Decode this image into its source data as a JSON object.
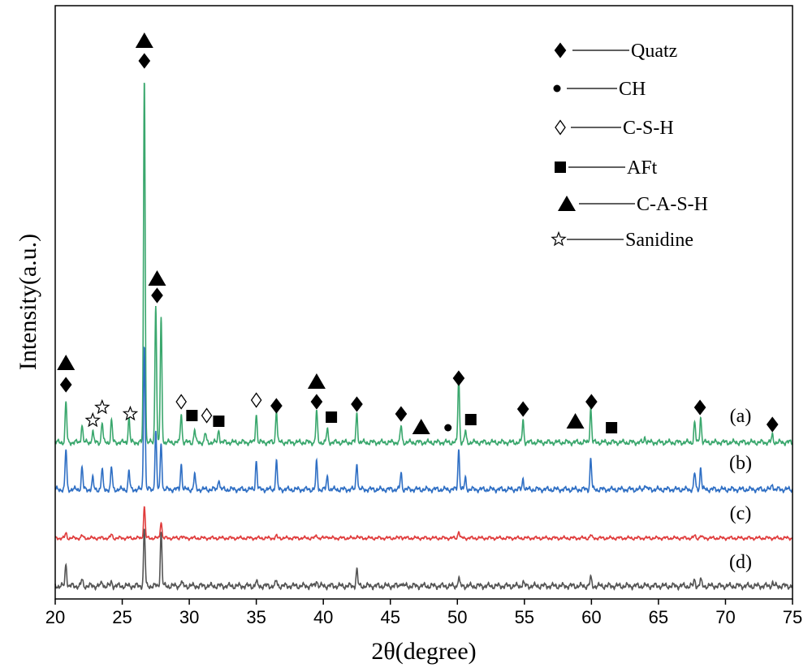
{
  "chart_data": {
    "type": "line",
    "title": "",
    "xlabel": "2θ(degree)",
    "ylabel": "Intensity(a.u.)",
    "xlim": [
      20,
      75
    ],
    "xticks": [
      20,
      25,
      30,
      35,
      40,
      45,
      50,
      55,
      60,
      65,
      70,
      75
    ],
    "grid": false,
    "legend_position": "top-right",
    "legend": [
      {
        "symbol": "diamond-filled",
        "label": "Quatz"
      },
      {
        "symbol": "circle-filled",
        "label": "CH"
      },
      {
        "symbol": "diamond-open",
        "label": "C-S-H"
      },
      {
        "symbol": "square-filled",
        "label": "AFt"
      },
      {
        "symbol": "triangle-filled",
        "label": "C-A-S-H"
      },
      {
        "symbol": "star-open",
        "label": "Sanidine"
      }
    ],
    "series": [
      {
        "name": "(a)",
        "color": "#3aa76d",
        "peaks": [
          {
            "x": 20.8,
            "h": 1.1
          },
          {
            "x": 22.0,
            "h": 0.5
          },
          {
            "x": 22.8,
            "h": 0.3
          },
          {
            "x": 23.5,
            "h": 0.55
          },
          {
            "x": 24.2,
            "h": 0.6
          },
          {
            "x": 25.5,
            "h": 0.7
          },
          {
            "x": 26.65,
            "h": 10.0
          },
          {
            "x": 27.5,
            "h": 3.8
          },
          {
            "x": 27.9,
            "h": 3.4
          },
          {
            "x": 29.4,
            "h": 0.8
          },
          {
            "x": 30.4,
            "h": 0.35
          },
          {
            "x": 31.2,
            "h": 0.25
          },
          {
            "x": 32.2,
            "h": 0.35
          },
          {
            "x": 35.0,
            "h": 0.8
          },
          {
            "x": 36.5,
            "h": 0.9
          },
          {
            "x": 39.5,
            "h": 0.85
          },
          {
            "x": 40.3,
            "h": 0.35
          },
          {
            "x": 42.5,
            "h": 0.8
          },
          {
            "x": 45.8,
            "h": 0.45
          },
          {
            "x": 50.1,
            "h": 1.8
          },
          {
            "x": 50.6,
            "h": 0.3
          },
          {
            "x": 54.9,
            "h": 0.6
          },
          {
            "x": 59.95,
            "h": 0.95
          },
          {
            "x": 64.0,
            "h": 0.15
          },
          {
            "x": 67.7,
            "h": 0.55
          },
          {
            "x": 68.15,
            "h": 0.7
          },
          {
            "x": 73.5,
            "h": 0.2
          }
        ]
      },
      {
        "name": "(b)",
        "color": "#2f6fc4",
        "peaks": [
          {
            "x": 20.8,
            "h": 1.1
          },
          {
            "x": 22.0,
            "h": 0.6
          },
          {
            "x": 22.8,
            "h": 0.3
          },
          {
            "x": 23.5,
            "h": 0.55
          },
          {
            "x": 24.2,
            "h": 0.6
          },
          {
            "x": 25.5,
            "h": 0.5
          },
          {
            "x": 26.65,
            "h": 4.0
          },
          {
            "x": 27.5,
            "h": 1.6
          },
          {
            "x": 27.9,
            "h": 1.3
          },
          {
            "x": 29.4,
            "h": 0.7
          },
          {
            "x": 30.4,
            "h": 0.4
          },
          {
            "x": 32.2,
            "h": 0.3
          },
          {
            "x": 35.0,
            "h": 0.8
          },
          {
            "x": 36.5,
            "h": 0.8
          },
          {
            "x": 39.5,
            "h": 0.75
          },
          {
            "x": 40.3,
            "h": 0.35
          },
          {
            "x": 42.5,
            "h": 0.75
          },
          {
            "x": 45.8,
            "h": 0.45
          },
          {
            "x": 50.1,
            "h": 1.1
          },
          {
            "x": 50.6,
            "h": 0.3
          },
          {
            "x": 54.9,
            "h": 0.3
          },
          {
            "x": 59.95,
            "h": 0.85
          },
          {
            "x": 64.0,
            "h": 0.15
          },
          {
            "x": 67.7,
            "h": 0.45
          },
          {
            "x": 68.15,
            "h": 0.6
          },
          {
            "x": 73.5,
            "h": 0.15
          }
        ]
      },
      {
        "name": "(c)",
        "color": "#e03c3c",
        "peaks": [
          {
            "x": 20.8,
            "h": 0.2
          },
          {
            "x": 22.0,
            "h": 0.1
          },
          {
            "x": 24.2,
            "h": 0.15
          },
          {
            "x": 26.65,
            "h": 1.3
          },
          {
            "x": 27.9,
            "h": 0.7
          },
          {
            "x": 29.4,
            "h": 0.1
          },
          {
            "x": 36.5,
            "h": 0.08
          },
          {
            "x": 39.5,
            "h": 0.12
          },
          {
            "x": 40.3,
            "h": 0.1
          },
          {
            "x": 42.5,
            "h": 0.1
          },
          {
            "x": 45.8,
            "h": 0.08
          },
          {
            "x": 50.1,
            "h": 0.3
          },
          {
            "x": 59.95,
            "h": 0.12
          },
          {
            "x": 67.7,
            "h": 0.1
          },
          {
            "x": 68.15,
            "h": 0.1
          }
        ]
      },
      {
        "name": "(d)",
        "color": "#555555",
        "peaks": [
          {
            "x": 20.8,
            "h": 0.55
          },
          {
            "x": 22.0,
            "h": 0.15
          },
          {
            "x": 23.5,
            "h": 0.1
          },
          {
            "x": 24.2,
            "h": 0.1
          },
          {
            "x": 26.65,
            "h": 1.4
          },
          {
            "x": 27.9,
            "h": 1.35
          },
          {
            "x": 29.4,
            "h": 0.1
          },
          {
            "x": 35.0,
            "h": 0.1
          },
          {
            "x": 36.5,
            "h": 0.12
          },
          {
            "x": 39.5,
            "h": 0.15
          },
          {
            "x": 42.5,
            "h": 0.4
          },
          {
            "x": 45.8,
            "h": 0.1
          },
          {
            "x": 50.1,
            "h": 0.2
          },
          {
            "x": 54.9,
            "h": 0.1
          },
          {
            "x": 59.95,
            "h": 0.2
          },
          {
            "x": 67.7,
            "h": 0.15
          },
          {
            "x": 68.15,
            "h": 0.15
          },
          {
            "x": 73.5,
            "h": 0.08
          }
        ]
      }
    ],
    "phase_markers": [
      {
        "x": 20.8,
        "symbols": [
          "diamond-filled",
          "triangle-filled"
        ]
      },
      {
        "x": 22.8,
        "symbols": [
          "star-open"
        ]
      },
      {
        "x": 23.5,
        "symbols": [
          "star-open"
        ]
      },
      {
        "x": 25.6,
        "symbols": [
          "star-open"
        ]
      },
      {
        "x": 26.65,
        "symbols": [
          "diamond-filled",
          "triangle-filled"
        ]
      },
      {
        "x": 27.6,
        "symbols": [
          "diamond-filled",
          "triangle-filled"
        ]
      },
      {
        "x": 29.4,
        "symbols": [
          "diamond-open"
        ]
      },
      {
        "x": 30.2,
        "symbols": [
          "square-filled"
        ]
      },
      {
        "x": 31.3,
        "symbols": [
          "diamond-open"
        ]
      },
      {
        "x": 32.2,
        "symbols": [
          "square-filled"
        ]
      },
      {
        "x": 35.0,
        "symbols": [
          "diamond-open"
        ]
      },
      {
        "x": 36.5,
        "symbols": [
          "diamond-filled"
        ]
      },
      {
        "x": 39.5,
        "symbols": [
          "diamond-filled",
          "triangle-filled"
        ]
      },
      {
        "x": 40.6,
        "symbols": [
          "square-filled"
        ]
      },
      {
        "x": 42.5,
        "symbols": [
          "diamond-filled"
        ]
      },
      {
        "x": 45.8,
        "symbols": [
          "diamond-filled"
        ]
      },
      {
        "x": 47.3,
        "symbols": [
          "triangle-filled"
        ]
      },
      {
        "x": 49.3,
        "symbols": [
          "circle-filled"
        ]
      },
      {
        "x": 50.1,
        "symbols": [
          "diamond-filled"
        ]
      },
      {
        "x": 51.0,
        "symbols": [
          "square-filled"
        ]
      },
      {
        "x": 54.9,
        "symbols": [
          "diamond-filled"
        ]
      },
      {
        "x": 58.8,
        "symbols": [
          "triangle-filled"
        ]
      },
      {
        "x": 60.0,
        "symbols": [
          "diamond-filled"
        ]
      },
      {
        "x": 61.5,
        "symbols": [
          "square-filled"
        ]
      },
      {
        "x": 68.1,
        "symbols": [
          "diamond-filled"
        ]
      },
      {
        "x": 73.5,
        "symbols": [
          "diamond-filled"
        ]
      }
    ]
  }
}
